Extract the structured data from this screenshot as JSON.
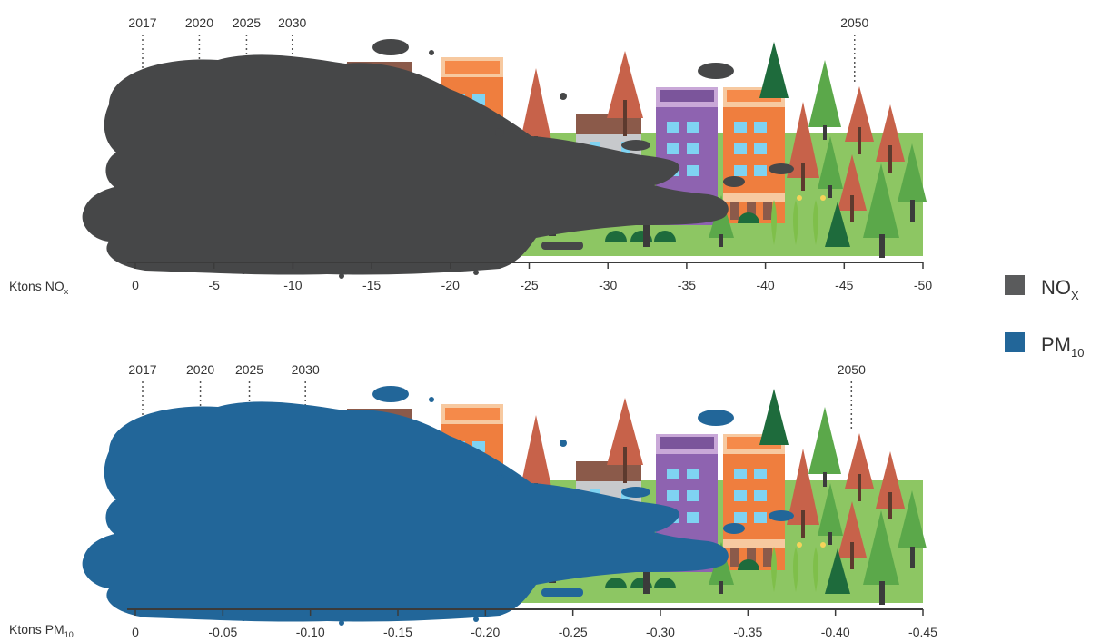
{
  "chart_data": [
    {
      "type": "area",
      "ylabel_text": "Ktons NO",
      "ylabel_sub": "x",
      "x": [
        "2017",
        "2020",
        "2025",
        "2030",
        "2050"
      ],
      "series": [
        {
          "name": "NOx",
          "values": [
            0,
            -3.6,
            -6.6,
            -9.5,
            -45.2
          ]
        }
      ],
      "ticks": [
        0,
        -5,
        -10,
        -15,
        -20,
        -25,
        -30,
        -35,
        -40,
        -45,
        -50
      ],
      "tick_labels": [
        "0",
        "-5",
        "-10",
        "-15",
        "-20",
        "-25",
        "-30",
        "-35",
        "-40",
        "-45",
        "-50"
      ],
      "xlim": [
        0,
        -50
      ],
      "color": "#464748"
    },
    {
      "type": "area",
      "ylabel_text": "Ktons PM",
      "ylabel_sub": "10",
      "x": [
        "2017",
        "2020",
        "2025",
        "2030",
        "2050"
      ],
      "series": [
        {
          "name": "PM10",
          "values": [
            0,
            -0.033,
            -0.061,
            -0.093,
            -0.405
          ]
        }
      ],
      "ticks": [
        0,
        -0.05,
        -0.1,
        -0.15,
        -0.2,
        -0.25,
        -0.3,
        -0.35,
        -0.4,
        -0.45
      ],
      "tick_labels": [
        "0",
        "-0.05",
        "-0.10",
        "-0.15",
        "-0.20",
        "-0.25",
        "-0.30",
        "-0.35",
        "-0.40",
        "-0.45"
      ],
      "xlim": [
        0,
        -0.45
      ],
      "color": "#226699"
    }
  ],
  "legend": [
    {
      "text": "NO",
      "sub": "X",
      "color": "#5a5b5c"
    },
    {
      "text": "PM",
      "sub": "10",
      "color": "#226699"
    }
  ]
}
